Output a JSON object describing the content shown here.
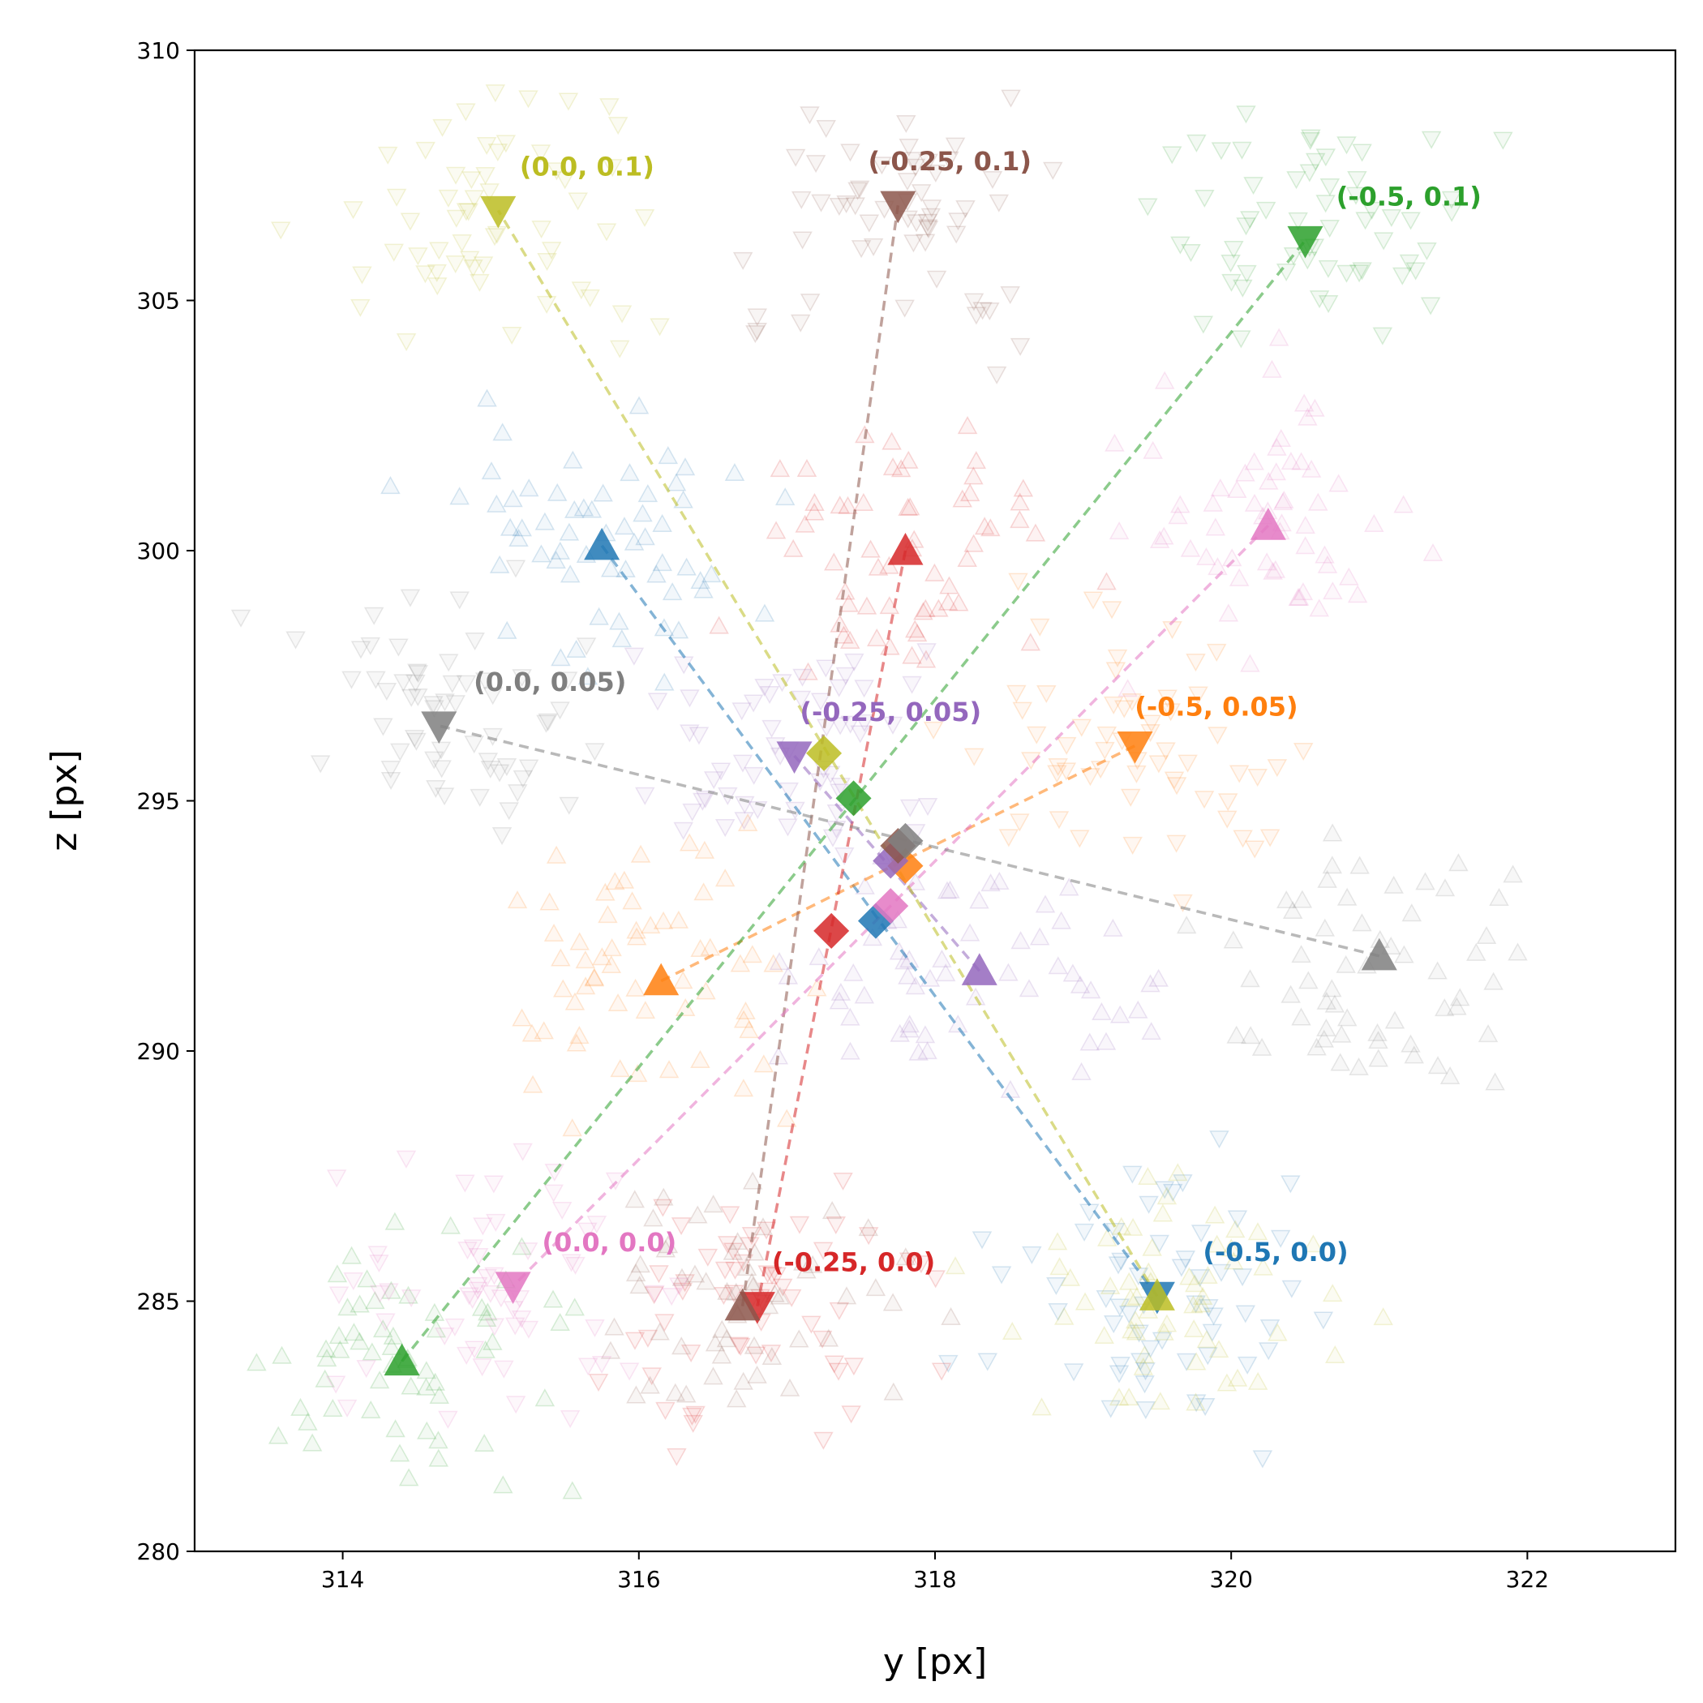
{
  "chart_data": {
    "type": "scatter",
    "title": "",
    "xlabel": "y [px]",
    "ylabel": "z [px]",
    "xlim": [
      313,
      323
    ],
    "ylim": [
      280,
      310
    ],
    "xticks": [
      314,
      316,
      318,
      320,
      322
    ],
    "yticks": [
      280,
      285,
      290,
      295,
      300,
      305,
      310
    ],
    "grid": false,
    "legend": "none",
    "series": [
      {
        "label": "(-0.5, 0.0)",
        "color": "#1f77b4",
        "start": [
          315.75,
          300.1
        ],
        "end": [
          319.5,
          285.1
        ],
        "mean": [
          317.6,
          292.6
        ]
      },
      {
        "label": "(-0.5, 0.05)",
        "color": "#ff7f0e",
        "start": [
          316.15,
          291.4
        ],
        "end": [
          319.35,
          296.1
        ],
        "mean": [
          317.8,
          293.7
        ]
      },
      {
        "label": "(-0.5, 0.1)",
        "color": "#2ca02c",
        "start": [
          314.4,
          283.8
        ],
        "end": [
          320.5,
          306.2
        ],
        "mean": [
          317.45,
          295.05
        ]
      },
      {
        "label": "(-0.25, 0.0)",
        "color": "#d62728",
        "start": [
          317.8,
          300.0
        ],
        "end": [
          316.8,
          284.9
        ],
        "mean": [
          317.3,
          292.4
        ]
      },
      {
        "label": "(-0.25, 0.05)",
        "color": "#9467bd",
        "start": [
          318.3,
          291.6
        ],
        "end": [
          317.05,
          295.9
        ],
        "mean": [
          317.7,
          293.8
        ]
      },
      {
        "label": "(-0.25, 0.1)",
        "color": "#8c564b",
        "start": [
          316.7,
          284.9
        ],
        "end": [
          317.75,
          306.9
        ],
        "mean": [
          317.75,
          294.1
        ]
      },
      {
        "label": "(0.0, 0.0)",
        "color": "#e377c2",
        "start": [
          320.25,
          300.5
        ],
        "end": [
          315.15,
          285.3
        ],
        "mean": [
          317.7,
          292.9
        ]
      },
      {
        "label": "(0.0, 0.05)",
        "color": "#7f7f7f",
        "start": [
          321.0,
          291.9
        ],
        "end": [
          314.65,
          296.5
        ],
        "mean": [
          317.8,
          294.2
        ]
      },
      {
        "label": "(0.0, 0.1)",
        "color": "#bcbd22",
        "start": [
          319.5,
          285.1
        ],
        "end": [
          315.05,
          306.8
        ],
        "mean": [
          317.25,
          295.95
        ]
      }
    ],
    "labels": [
      {
        "text": "(-0.5, 0.0)",
        "color": "#1f77b4",
        "at": [
          320.3,
          285.8
        ]
      },
      {
        "text": "(-0.5, 0.05)",
        "color": "#ff7f0e",
        "at": [
          319.9,
          296.7
        ]
      },
      {
        "text": "(-0.5, 0.1)",
        "color": "#2ca02c",
        "at": [
          321.2,
          306.9
        ]
      },
      {
        "text": "(-0.25, 0.0)",
        "color": "#d62728",
        "at": [
          317.45,
          285.6
        ]
      },
      {
        "text": "(-0.25, 0.05)",
        "color": "#9467bd",
        "at": [
          317.7,
          296.6
        ]
      },
      {
        "text": "(-0.25, 0.1)",
        "color": "#8c564b",
        "at": [
          318.1,
          307.6
        ]
      },
      {
        "text": "(0.0, 0.0)",
        "color": "#e377c2",
        "at": [
          315.8,
          286.0
        ]
      },
      {
        "text": "(0.0, 0.05)",
        "color": "#7f7f7f",
        "at": [
          315.4,
          297.2
        ]
      },
      {
        "text": "(0.0, 0.1)",
        "color": "#bcbd22",
        "at": [
          315.65,
          307.5
        ]
      }
    ],
    "background_markers": "faint translucent up-triangles clustered near each start point and down-triangles near each end point, one cloud per series colour"
  }
}
